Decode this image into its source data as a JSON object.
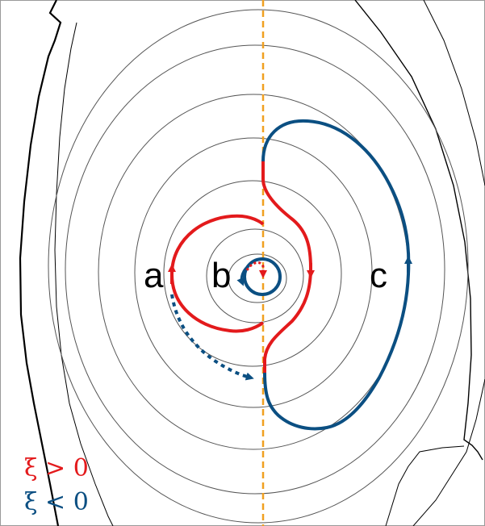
{
  "labels": {
    "a": "a",
    "b": "b",
    "c": "c"
  },
  "legend": {
    "positive": "ξ > 0",
    "negative": "ξ < 0"
  },
  "colors": {
    "red": "#e31a1c",
    "blue": "#0b4f82",
    "orange": "#f0a020",
    "contour": "#555555",
    "wall": "#000000"
  }
}
